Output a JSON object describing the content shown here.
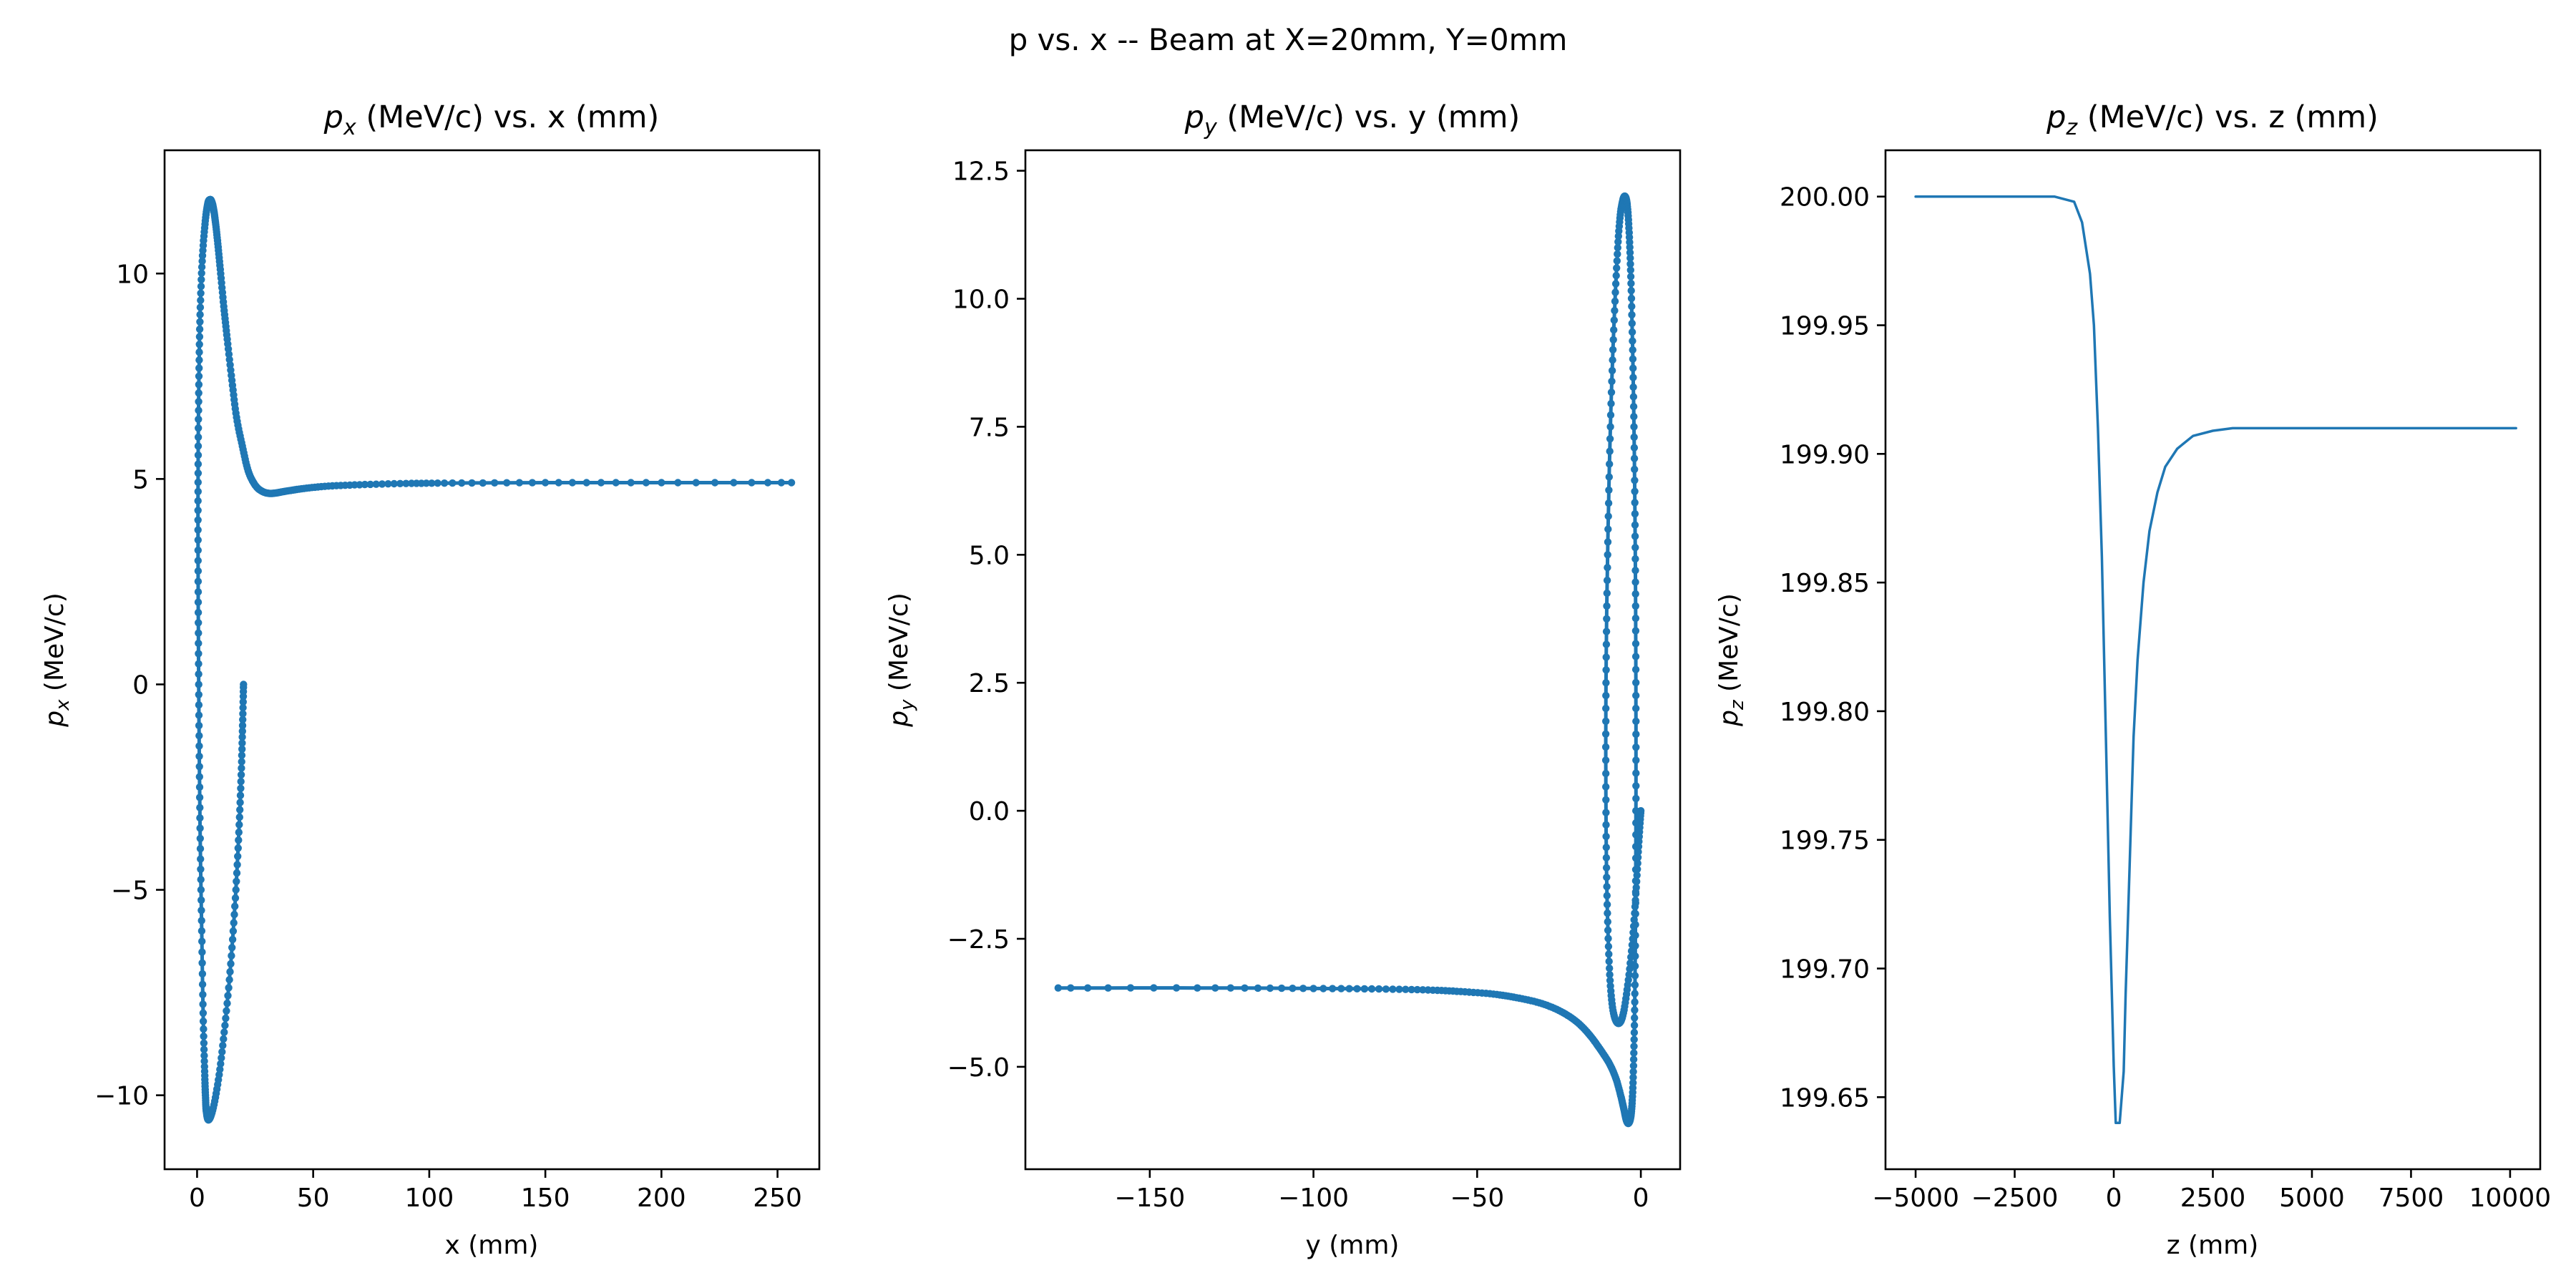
{
  "figure": {
    "suptitle": "p vs. x -- Beam at X=20mm, Y=0mm",
    "line_color": "#1f77b4",
    "background": "#ffffff"
  },
  "chart_data": [
    {
      "type": "scatter",
      "title_var": "p",
      "title_sub": "x",
      "title_rest": " (MeV/c) vs. x (mm)",
      "xlabel": "x (mm)",
      "ylabel_var": "p",
      "ylabel_sub": "x",
      "ylabel_rest": " (MeV/c)",
      "xlim": [
        -14,
        268
      ],
      "ylim": [
        -11.8,
        13.0
      ],
      "xticks": [
        0,
        50,
        100,
        150,
        200,
        250
      ],
      "xtick_labels": [
        "0",
        "50",
        "100",
        "150",
        "200",
        "250"
      ],
      "yticks": [
        -10,
        -5,
        0,
        5,
        10
      ],
      "ytick_labels": [
        "−10",
        "−5",
        "0",
        "5",
        "10"
      ],
      "marker": "dot-line",
      "grid": false,
      "series": [
        {
          "x": [
            20,
            19.6,
            19,
            18,
            16.5,
            14.5,
            12,
            9.5,
            7,
            5,
            4,
            3.6,
            3.2,
            2.6,
            2,
            1.4,
            1,
            0.7,
            0.5,
            0.4,
            0.5,
            0.8,
            1.3,
            2.2,
            3.4,
            4.6,
            5.6,
            6.3,
            7,
            7.8,
            8.8,
            10,
            11.5,
            13,
            15,
            17,
            19.5,
            22,
            25,
            28,
            31,
            34,
            38,
            45,
            55,
            70,
            90,
            110,
            150,
            200,
            256
          ],
          "y": [
            0,
            -1,
            -2.2,
            -3.6,
            -5.2,
            -6.8,
            -8.3,
            -9.5,
            -10.3,
            -10.6,
            -10.4,
            -10,
            -9.3,
            -8,
            -6,
            -4,
            -2,
            0,
            2,
            4,
            5.8,
            7.5,
            9,
            10.3,
            11.2,
            11.7,
            11.8,
            11.75,
            11.6,
            11.3,
            10.8,
            10.1,
            9.2,
            8.4,
            7.4,
            6.5,
            5.8,
            5.2,
            4.85,
            4.7,
            4.65,
            4.66,
            4.7,
            4.76,
            4.82,
            4.86,
            4.89,
            4.9,
            4.91,
            4.91,
            4.91
          ]
        }
      ]
    },
    {
      "type": "scatter",
      "title_var": "p",
      "title_sub": "y",
      "title_rest": " (MeV/c) vs. y (mm)",
      "xlabel": "y (mm)",
      "ylabel_var": "p",
      "ylabel_sub": "y",
      "ylabel_rest": " (MeV/c)",
      "xlim": [
        -188,
        12
      ],
      "ylim": [
        -7.0,
        12.9
      ],
      "xticks": [
        -150,
        -100,
        -50,
        0
      ],
      "xtick_labels": [
        "−150",
        "−100",
        "−50",
        "0"
      ],
      "yticks": [
        -5.0,
        -2.5,
        0.0,
        2.5,
        5.0,
        7.5,
        10.0,
        12.5
      ],
      "ytick_labels": [
        "−5.0",
        "−2.5",
        "0.0",
        "2.5",
        "5.0",
        "7.5",
        "10.0",
        "12.5"
      ],
      "marker": "dot-line",
      "grid": false,
      "series": [
        {
          "x": [
            0,
            -0.6,
            -1.4,
            -2.5,
            -4,
            -5.5,
            -7,
            -8.5,
            -9.5,
            -10.2,
            -10.6,
            -10.7,
            -10.5,
            -10,
            -9.3,
            -8.4,
            -7.4,
            -6.5,
            -5.6,
            -4.8,
            -4.1,
            -3.5,
            -3,
            -2.5,
            -2.1,
            -1.8,
            -1.6,
            -1.5,
            -1.5,
            -1.6,
            -1.8,
            -2.1,
            -2.5,
            -3,
            -3.7,
            -4.4,
            -5.1,
            -6,
            -7.5,
            -9.5,
            -12.5,
            -16,
            -20,
            -25,
            -31,
            -38,
            -45,
            -55,
            -65,
            -80,
            -100,
            -130,
            -178
          ],
          "y": [
            0,
            -0.6,
            -1.5,
            -2.5,
            -3.4,
            -4,
            -4.15,
            -3.9,
            -3.2,
            -2,
            -0.5,
            1.5,
            3.5,
            5.5,
            7.5,
            9.2,
            10.6,
            11.5,
            11.9,
            12,
            11.8,
            11.2,
            10.3,
            9,
            7.5,
            5.8,
            4,
            2,
            0,
            -1.8,
            -3.4,
            -4.6,
            -5.5,
            -5.95,
            -6.1,
            -6.05,
            -5.85,
            -5.6,
            -5.25,
            -4.95,
            -4.65,
            -4.35,
            -4.1,
            -3.9,
            -3.75,
            -3.65,
            -3.58,
            -3.53,
            -3.5,
            -3.48,
            -3.47,
            -3.46,
            -3.46
          ]
        }
      ]
    },
    {
      "type": "line",
      "title_var": "p",
      "title_sub": "z",
      "title_rest": " (MeV/c) vs. z (mm)",
      "xlabel": "z (mm)",
      "ylabel_var": "p",
      "ylabel_sub": "z",
      "ylabel_rest": " (MeV/c)",
      "xlim": [
        -5760,
        10760
      ],
      "ylim": [
        199.622,
        200.018
      ],
      "xticks": [
        -5000,
        -2500,
        0,
        2500,
        5000,
        7500,
        10000
      ],
      "xtick_labels": [
        "−5000",
        "−2500",
        "0",
        "2500",
        "5000",
        "7500",
        "10000"
      ],
      "yticks": [
        199.65,
        199.7,
        199.75,
        199.8,
        199.85,
        199.9,
        199.95,
        200.0
      ],
      "ytick_labels": [
        "199.65",
        "199.70",
        "199.75",
        "199.80",
        "199.85",
        "199.90",
        "199.95",
        "200.00"
      ],
      "marker": "line",
      "grid": false,
      "series": [
        {
          "x": [
            -5000,
            -2000,
            -1500,
            -1000,
            -800,
            -600,
            -500,
            -400,
            -300,
            -200,
            -100,
            0,
            50,
            150,
            250,
            300,
            400,
            500,
            600,
            750,
            900,
            1100,
            1300,
            1600,
            2000,
            2500,
            3000,
            5000,
            7500,
            10150
          ],
          "y": [
            200.0,
            200.0,
            200.0,
            199.998,
            199.99,
            199.97,
            199.95,
            199.91,
            199.86,
            199.79,
            199.72,
            199.662,
            199.64,
            199.64,
            199.66,
            199.69,
            199.74,
            199.79,
            199.82,
            199.85,
            199.87,
            199.885,
            199.895,
            199.902,
            199.907,
            199.909,
            199.91,
            199.91,
            199.91,
            199.91
          ]
        }
      ]
    }
  ]
}
